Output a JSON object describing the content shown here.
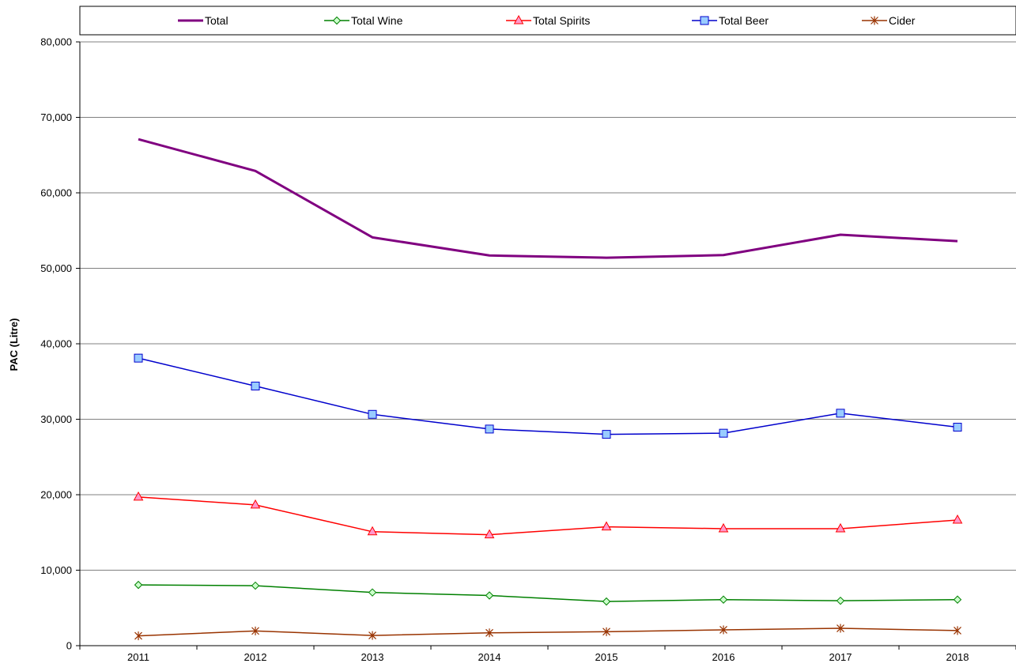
{
  "chart_data": {
    "type": "line",
    "ylabel": "PAC (Litre)",
    "xlabel": "",
    "ylim": [
      0,
      80000
    ],
    "yticks": [
      0,
      10000,
      20000,
      30000,
      40000,
      50000,
      60000,
      70000,
      80000
    ],
    "ytick_labels": [
      "0",
      "10,000",
      "20,000",
      "30,000",
      "40,000",
      "50,000",
      "60,000",
      "70,000",
      "80,000"
    ],
    "categories": [
      "2011",
      "2012",
      "2013",
      "2014",
      "2015",
      "2016",
      "2017",
      "2018"
    ],
    "grid": "horizontal",
    "legend_position": "top",
    "series": [
      {
        "name": "Total",
        "color": "#800080",
        "marker": "none",
        "values": [
          67100,
          62900,
          54100,
          51700,
          51400,
          51750,
          54450,
          53600
        ]
      },
      {
        "name": "Total Wine",
        "color": "#008000",
        "marker": "diamond",
        "values": [
          8050,
          7950,
          7050,
          6650,
          5850,
          6100,
          5950,
          6100
        ]
      },
      {
        "name": "Total Spirits",
        "color": "#ff0000",
        "marker": "triangle",
        "values": [
          19700,
          18650,
          15100,
          14700,
          15750,
          15500,
          15500,
          16650
        ]
      },
      {
        "name": "Total Beer",
        "color": "#0000cc",
        "marker": "square",
        "values": [
          38100,
          34400,
          30650,
          28700,
          28000,
          28150,
          30800,
          28950
        ]
      },
      {
        "name": "Cider",
        "color": "#993300",
        "marker": "star",
        "values": [
          1300,
          1950,
          1350,
          1700,
          1850,
          2100,
          2300,
          2000
        ]
      }
    ]
  }
}
